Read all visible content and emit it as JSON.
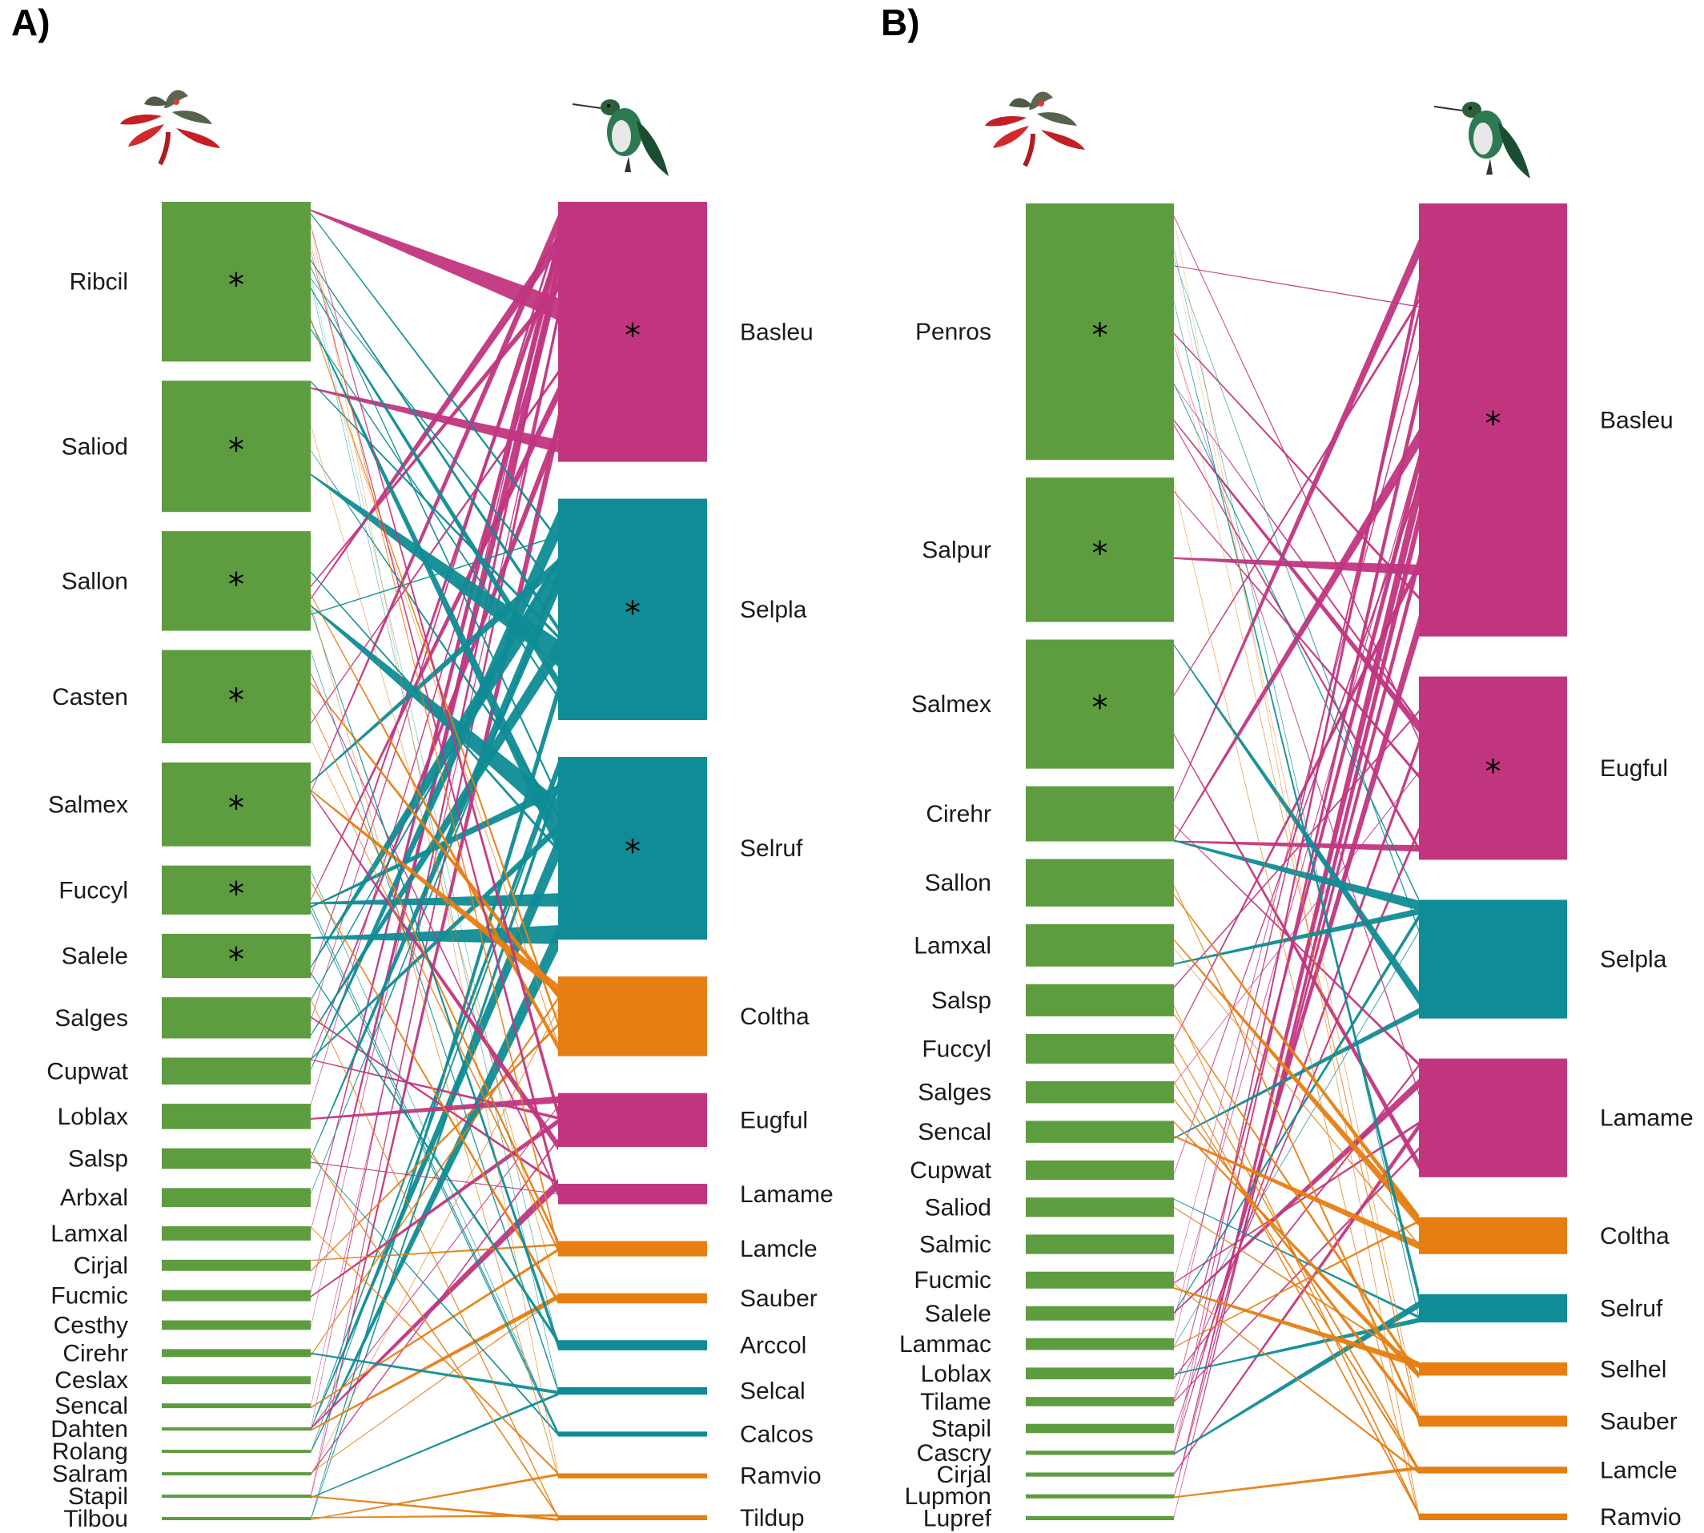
{
  "colors": {
    "plant": "#5d9c3f",
    "magenta": "#c1357f",
    "teal": "#0f8c95",
    "orange": "#e67e12",
    "text": "#1a1a1a"
  },
  "panels": [
    {
      "label": "A)"
    },
    {
      "label": "B)"
    }
  ],
  "chart_data": [
    {
      "type": "bipartite-network",
      "panel": "A)",
      "plants": [
        {
          "name": "Ribcil",
          "size": 1.0,
          "star": true
        },
        {
          "name": "Saliod",
          "size": 0.82,
          "star": true
        },
        {
          "name": "Sallon",
          "size": 0.62,
          "star": true
        },
        {
          "name": "Casten",
          "size": 0.58,
          "star": true
        },
        {
          "name": "Salmex",
          "size": 0.52,
          "star": true
        },
        {
          "name": "Fuccyl",
          "size": 0.3,
          "star": true
        },
        {
          "name": "Salele",
          "size": 0.27,
          "star": true
        },
        {
          "name": "Salges",
          "size": 0.25,
          "star": false
        },
        {
          "name": "Cupwat",
          "size": 0.16,
          "star": false
        },
        {
          "name": "Loblax",
          "size": 0.15,
          "star": false
        },
        {
          "name": "Salsp",
          "size": 0.12,
          "star": false
        },
        {
          "name": "Arbxal",
          "size": 0.11,
          "star": false
        },
        {
          "name": "Lamxal",
          "size": 0.08,
          "star": false
        },
        {
          "name": "Cirjal",
          "size": 0.06,
          "star": false
        },
        {
          "name": "Fucmic",
          "size": 0.06,
          "star": false
        },
        {
          "name": "Cesthy",
          "size": 0.05,
          "star": false
        },
        {
          "name": "Cirehr",
          "size": 0.04,
          "star": false
        },
        {
          "name": "Ceslax",
          "size": 0.04,
          "star": false
        },
        {
          "name": "Sencal",
          "size": 0.02,
          "star": false
        },
        {
          "name": "Dahten",
          "size": 0.01,
          "star": false
        },
        {
          "name": "Rolang",
          "size": 0.01,
          "star": false
        },
        {
          "name": "Salram",
          "size": 0.01,
          "star": false
        },
        {
          "name": "Stapil",
          "size": 0.01,
          "star": false
        },
        {
          "name": "Tilbou",
          "size": 0.01,
          "star": false
        }
      ],
      "birds": [
        {
          "name": "Basleu",
          "size": 1.0,
          "color": "magenta",
          "star": true
        },
        {
          "name": "Selpla",
          "size": 0.85,
          "color": "teal",
          "star": true
        },
        {
          "name": "Selruf",
          "size": 0.7,
          "color": "teal",
          "star": true
        },
        {
          "name": "Coltha",
          "size": 0.3,
          "color": "orange",
          "star": false
        },
        {
          "name": "Eugful",
          "size": 0.2,
          "color": "magenta",
          "star": false
        },
        {
          "name": "Lamame",
          "size": 0.07,
          "color": "magenta",
          "star": false
        },
        {
          "name": "Lamcle",
          "size": 0.05,
          "color": "orange",
          "star": false
        },
        {
          "name": "Sauber",
          "size": 0.03,
          "color": "orange",
          "star": false
        },
        {
          "name": "Arccol",
          "size": 0.03,
          "color": "teal",
          "star": false
        },
        {
          "name": "Selcal",
          "size": 0.02,
          "color": "teal",
          "star": false
        },
        {
          "name": "Calcos",
          "size": 0.01,
          "color": "teal",
          "star": false
        },
        {
          "name": "Ramvio",
          "size": 0.01,
          "color": "orange",
          "star": false
        },
        {
          "name": "Tildup",
          "size": 0.01,
          "color": "orange",
          "star": false
        }
      ]
    },
    {
      "type": "bipartite-network",
      "panel": "B)",
      "plants": [
        {
          "name": "Penros",
          "size": 1.0,
          "star": true
        },
        {
          "name": "Salpur",
          "size": 0.56,
          "star": true
        },
        {
          "name": "Salmex",
          "size": 0.5,
          "star": true
        },
        {
          "name": "Cirehr",
          "size": 0.21,
          "star": false
        },
        {
          "name": "Sallon",
          "size": 0.18,
          "star": false
        },
        {
          "name": "Lamxal",
          "size": 0.16,
          "star": false
        },
        {
          "name": "Salsp",
          "size": 0.12,
          "star": false
        },
        {
          "name": "Fuccyl",
          "size": 0.11,
          "star": false
        },
        {
          "name": "Salges",
          "size": 0.08,
          "star": false
        },
        {
          "name": "Sencal",
          "size": 0.08,
          "star": false
        },
        {
          "name": "Cupwat",
          "size": 0.07,
          "star": false
        },
        {
          "name": "Saliod",
          "size": 0.07,
          "star": false
        },
        {
          "name": "Salmic",
          "size": 0.07,
          "star": false
        },
        {
          "name": "Fucmic",
          "size": 0.06,
          "star": false
        },
        {
          "name": "Salele",
          "size": 0.05,
          "star": false
        },
        {
          "name": "Lammac",
          "size": 0.04,
          "star": false
        },
        {
          "name": "Loblax",
          "size": 0.04,
          "star": false
        },
        {
          "name": "Tilame",
          "size": 0.03,
          "star": false
        },
        {
          "name": "Stapil",
          "size": 0.03,
          "star": false
        },
        {
          "name": "Cascry",
          "size": 0.01,
          "star": false
        },
        {
          "name": "Cirjal",
          "size": 0.01,
          "star": false
        },
        {
          "name": "Lupmon",
          "size": 0.01,
          "star": false
        },
        {
          "name": "Lupref",
          "size": 0.01,
          "star": false
        }
      ],
      "birds": [
        {
          "name": "Basleu",
          "size": 1.0,
          "color": "magenta",
          "star": true
        },
        {
          "name": "Eugful",
          "size": 0.42,
          "color": "magenta",
          "star": true
        },
        {
          "name": "Selpla",
          "size": 0.27,
          "color": "teal",
          "star": false
        },
        {
          "name": "Lamame",
          "size": 0.27,
          "color": "magenta",
          "star": false
        },
        {
          "name": "Coltha",
          "size": 0.08,
          "color": "orange",
          "star": false
        },
        {
          "name": "Selruf",
          "size": 0.06,
          "color": "teal",
          "star": false
        },
        {
          "name": "Selhel",
          "size": 0.025,
          "color": "orange",
          "star": false
        },
        {
          "name": "Sauber",
          "size": 0.02,
          "color": "orange",
          "star": false
        },
        {
          "name": "Lamcle",
          "size": 0.01,
          "color": "orange",
          "star": false
        },
        {
          "name": "Ramvio",
          "size": 0.01,
          "color": "orange",
          "star": false
        }
      ]
    }
  ]
}
